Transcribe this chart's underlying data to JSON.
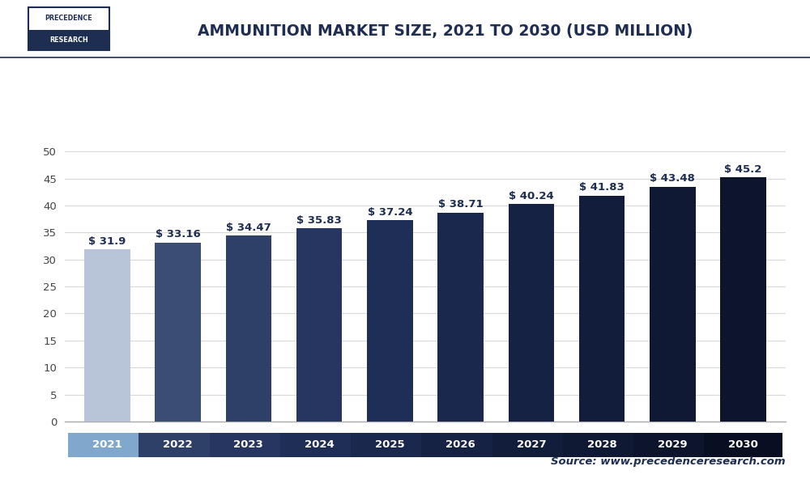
{
  "title": "AMMUNITION MARKET SIZE, 2021 TO 2030 (USD MILLION)",
  "categories": [
    "2021",
    "2022",
    "2023",
    "2024",
    "2025",
    "2026",
    "2027",
    "2028",
    "2029",
    "2030"
  ],
  "values": [
    31.9,
    33.16,
    34.47,
    35.83,
    37.24,
    38.71,
    40.24,
    41.83,
    43.48,
    45.2
  ],
  "labels": [
    "$ 31.9",
    "$ 33.16",
    "$ 34.47",
    "$ 35.83",
    "$ 37.24",
    "$ 38.71",
    "$ 40.24",
    "$ 41.83",
    "$ 43.48",
    "$ 45.2"
  ],
  "bar_colors": [
    "#b8c5d9",
    "#3b4d73",
    "#2e4068",
    "#263660",
    "#1f2e56",
    "#1a284d",
    "#162244",
    "#121d3c",
    "#0f1933",
    "#0c152b"
  ],
  "xtick_box_colors": [
    "#7fa8cc",
    "#2e4068",
    "#263660",
    "#1f2e56",
    "#1a284d",
    "#162244",
    "#121d3c",
    "#0f1933",
    "#0c152b",
    "#090f22"
  ],
  "ylim": [
    0,
    55
  ],
  "yticks": [
    0,
    5,
    10,
    15,
    20,
    25,
    30,
    35,
    40,
    45,
    50
  ],
  "background_color": "#ffffff",
  "grid_color": "#d8d8d8",
  "title_fontsize": 13.5,
  "label_fontsize": 9.5,
  "tick_fontsize": 9.5,
  "source_text": "Source: www.precedenceresearch.com",
  "logo_text_top": "PRECEDENCE",
  "logo_text_bottom": "RESEARCH",
  "logo_border_color": "#1e2d52",
  "logo_fill_color": "#1e2d52",
  "header_line_color": "#1e2d52"
}
